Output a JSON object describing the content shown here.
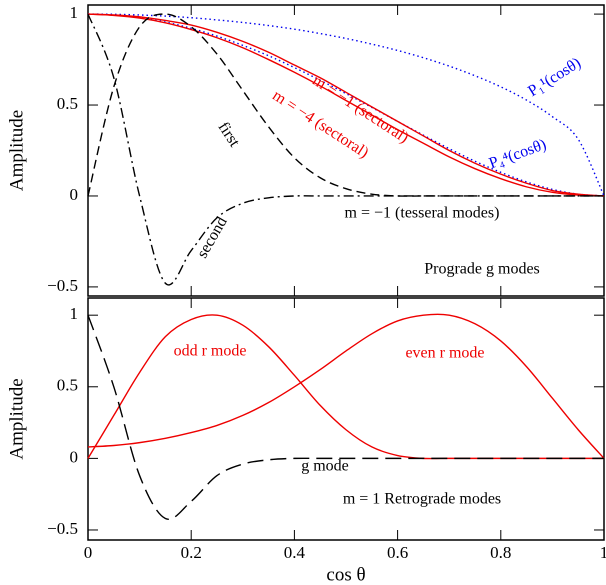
{
  "chart_data": [
    {
      "type": "line",
      "ylabel": "Amplitude",
      "xlim": [
        0,
        1
      ],
      "ylim": [
        -0.55,
        1.05
      ],
      "xticks": [
        0,
        0.2,
        0.4,
        0.6,
        0.8,
        1
      ],
      "yticks": [
        {
          "value": -0.5,
          "label": "−0.5"
        },
        0,
        0.5,
        1
      ],
      "x": [
        0,
        0.05,
        0.1,
        0.15,
        0.2,
        0.25,
        0.3,
        0.35,
        0.4,
        0.45,
        0.5,
        0.55,
        0.6,
        0.65,
        0.7,
        0.75,
        0.8,
        0.85,
        0.9,
        0.95,
        1
      ],
      "series": [
        {
          "color": "#0000ee",
          "style": "dotted",
          "values": [
            1,
            0.999,
            0.995,
            0.989,
            0.98,
            0.968,
            0.954,
            0.937,
            0.917,
            0.893,
            0.866,
            0.835,
            0.8,
            0.76,
            0.714,
            0.661,
            0.6,
            0.527,
            0.436,
            0.312,
            0
          ]
        },
        {
          "color": "#0000ee",
          "style": "dotted",
          "values": [
            1,
            0.995,
            0.98,
            0.956,
            0.922,
            0.879,
            0.828,
            0.771,
            0.706,
            0.636,
            0.563,
            0.487,
            0.41,
            0.334,
            0.26,
            0.191,
            0.13,
            0.077,
            0.036,
            0.01,
            0
          ]
        },
        {
          "color": "#ee0000",
          "style": "solid",
          "values": [
            1,
            0.995,
            0.985,
            0.965,
            0.94,
            0.9,
            0.85,
            0.79,
            0.72,
            0.65,
            0.57,
            0.49,
            0.41,
            0.33,
            0.25,
            0.18,
            0.12,
            0.07,
            0.03,
            0.01,
            0
          ]
        },
        {
          "color": "#ee0000",
          "style": "solid",
          "values": [
            1,
            0.993,
            0.978,
            0.952,
            0.915,
            0.87,
            0.815,
            0.75,
            0.68,
            0.605,
            0.525,
            0.445,
            0.365,
            0.29,
            0.215,
            0.15,
            0.095,
            0.05,
            0.02,
            0.005,
            0
          ]
        },
        {
          "color": "#000000",
          "style": "dashed",
          "values": [
            0,
            0.6,
            0.93,
            1,
            0.93,
            0.78,
            0.58,
            0.38,
            0.21,
            0.1,
            0.04,
            0.01,
            0,
            0,
            0,
            0,
            0,
            0,
            0,
            0,
            0
          ]
        },
        {
          "color": "#000000",
          "style": "dashdot",
          "values": [
            1,
            0.65,
            0,
            -0.48,
            -0.3,
            -0.12,
            -0.04,
            -0.01,
            0,
            0,
            0,
            0,
            0,
            0,
            0,
            0,
            0,
            0,
            0,
            0,
            0
          ]
        }
      ],
      "annotations": [
        {
          "text": "P₁¹(cosθ)",
          "color": "#0000ee"
        },
        {
          "text": "P₄⁴(cosθ)",
          "color": "#0000ee"
        },
        {
          "text": "m = −1 (sectoral)",
          "color": "#ee0000"
        },
        {
          "text": "m = −4 (sectoral)",
          "color": "#ee0000"
        },
        {
          "text": "first",
          "color": "#000000"
        },
        {
          "text": "second",
          "color": "#000000"
        },
        {
          "text": "m = −1 (tesseral modes)",
          "color": "#000000"
        },
        {
          "text": "Prograde g modes",
          "color": "#000000"
        }
      ]
    },
    {
      "type": "line",
      "ylabel": "Amplitude",
      "xlabel": "cos θ",
      "xlim": [
        0,
        1
      ],
      "ylim": [
        -0.57,
        1.12
      ],
      "xticks": [
        0,
        0.2,
        0.4,
        0.6,
        0.8,
        1
      ],
      "yticks": [
        {
          "value": -0.5,
          "label": "−0.5"
        },
        0,
        0.5,
        1
      ],
      "x": [
        0,
        0.05,
        0.1,
        0.15,
        0.2,
        0.25,
        0.3,
        0.35,
        0.4,
        0.45,
        0.5,
        0.55,
        0.6,
        0.65,
        0.7,
        0.75,
        0.8,
        0.85,
        0.9,
        0.95,
        1
      ],
      "series": [
        {
          "color": "#ee0000",
          "style": "solid",
          "values": [
            0,
            0.3,
            0.6,
            0.85,
            0.97,
            1,
            0.93,
            0.78,
            0.58,
            0.37,
            0.2,
            0.08,
            0.02,
            0,
            0,
            0,
            0,
            0,
            0,
            0,
            0
          ]
        },
        {
          "color": "#ee0000",
          "style": "solid",
          "values": [
            0.08,
            0.09,
            0.11,
            0.14,
            0.18,
            0.23,
            0.3,
            0.39,
            0.5,
            0.62,
            0.75,
            0.87,
            0.96,
            1,
            1,
            0.94,
            0.82,
            0.64,
            0.42,
            0.2,
            0
          ]
        },
        {
          "color": "#000000",
          "style": "longdash",
          "values": [
            1,
            0.5,
            -0.12,
            -0.42,
            -0.3,
            -0.12,
            -0.04,
            -0.01,
            0,
            0,
            0,
            0,
            0,
            0,
            0,
            0,
            0,
            0,
            0,
            0,
            0
          ]
        }
      ],
      "annotations": [
        {
          "text": "odd r mode",
          "color": "#ee0000"
        },
        {
          "text": "even r mode",
          "color": "#ee0000"
        },
        {
          "text": "g mode",
          "color": "#000000"
        },
        {
          "text": "m = 1   Retrograde modes",
          "color": "#000000"
        }
      ]
    }
  ]
}
